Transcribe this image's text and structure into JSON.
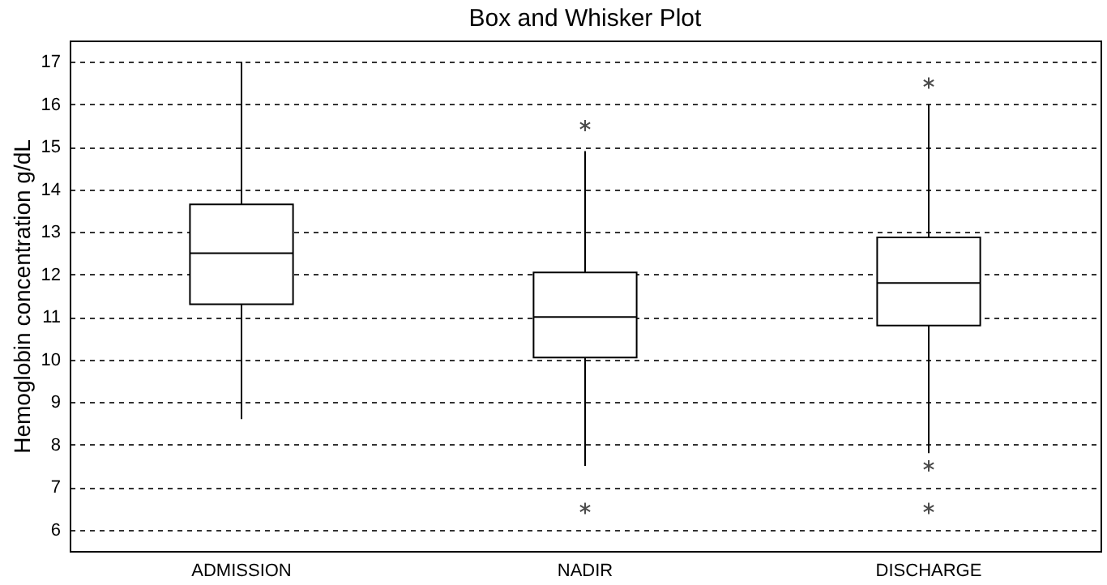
{
  "chart_data": {
    "type": "box",
    "title": "Box and Whisker Plot",
    "ylabel": "Hemoglobin concentration g/dL",
    "categories": [
      "ADMISSION",
      "NADIR",
      "DISCHARGE"
    ],
    "boxes": [
      {
        "low": 8.6,
        "q1": 11.3,
        "median": 12.5,
        "q3": 13.65,
        "high": 17
      },
      {
        "low": 7.5,
        "q1": 10.05,
        "median": 11,
        "q3": 12.05,
        "high": 14.9,
        "outliers": [
          15.5,
          6.5
        ]
      },
      {
        "low": 7.8,
        "q1": 10.8,
        "median": 11.8,
        "q3": 12.87,
        "high": 16,
        "outliers": [
          16.5,
          7.5,
          6.5
        ]
      }
    ],
    "ylim": [
      5.5,
      17.5
    ],
    "yticks": [
      6,
      7,
      8,
      9,
      10,
      11,
      12,
      13,
      14,
      15,
      16,
      17
    ],
    "grid": "y"
  }
}
